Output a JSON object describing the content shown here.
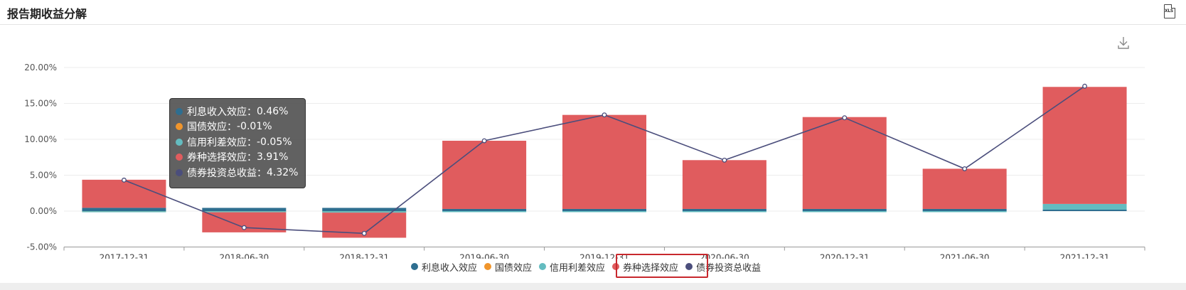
{
  "panel": {
    "title": "报告期收益分解",
    "xls_label": "XLS"
  },
  "colors": {
    "interest": "#2e6e90",
    "treasury": "#f0952c",
    "credit": "#64bcc0",
    "selection": "#e05c5e",
    "total": "#4b4e7c"
  },
  "chart_data": {
    "type": "bar",
    "stacked": true,
    "categories": [
      "2017-12-31",
      "2018-06-30",
      "2018-12-31",
      "2019-06-30",
      "2019-12-31",
      "2020-06-30",
      "2020-12-31",
      "2021-06-30",
      "2021-12-31"
    ],
    "ylim": [
      -5,
      20
    ],
    "yticks": [
      "-5.00%",
      "0.00%",
      "5.00%",
      "10.00%",
      "15.00%",
      "20.00%"
    ],
    "series": [
      {
        "name": "利息收入效应",
        "type": "bar",
        "values": [
          0.46,
          0.45,
          0.45,
          0.3,
          0.3,
          0.3,
          0.3,
          0.3,
          0.2
        ]
      },
      {
        "name": "国债效应",
        "type": "bar",
        "values": [
          -0.01,
          -0.01,
          -0.01,
          0,
          0,
          0,
          0,
          0,
          0
        ]
      },
      {
        "name": "信用利差效应",
        "type": "bar",
        "values": [
          -0.05,
          -0.15,
          -0.2,
          -0.1,
          -0.1,
          -0.1,
          -0.1,
          -0.1,
          0.8
        ]
      },
      {
        "name": "券种选择效应",
        "type": "bar",
        "values": [
          3.91,
          -2.8,
          -3.5,
          9.5,
          13.1,
          6.8,
          12.8,
          5.6,
          16.3
        ]
      },
      {
        "name": "债券投资总收益",
        "type": "line",
        "values": [
          4.32,
          -2.3,
          -3.1,
          9.8,
          13.4,
          7.1,
          13.0,
          5.9,
          17.4
        ]
      }
    ],
    "legend_position": "bottom",
    "grid": true
  },
  "tooltip": {
    "rows": [
      {
        "label": "利息收入效应：",
        "value": "0.46%"
      },
      {
        "label": "国债效应：",
        "value": "-0.01%"
      },
      {
        "label": "信用利差效应：",
        "value": "-0.05%"
      },
      {
        "label": "券种选择效应：",
        "value": "3.91%"
      },
      {
        "label": "债券投资总收益：",
        "value": "4.32%"
      }
    ]
  }
}
